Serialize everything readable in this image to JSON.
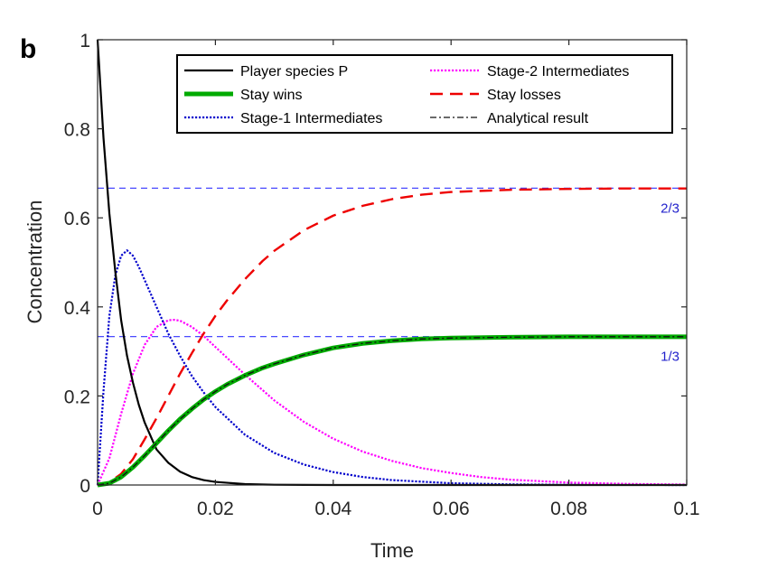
{
  "panel_label": "b",
  "chart_data": {
    "type": "line",
    "title": "",
    "xlabel": "Time",
    "ylabel": "Concentration",
    "xlim": [
      0,
      0.1
    ],
    "ylim": [
      0,
      1
    ],
    "xticks": [
      0,
      0.02,
      0.04,
      0.06,
      0.08,
      0.1
    ],
    "xtick_labels": [
      "0",
      "0.02",
      "0.04",
      "0.06",
      "0.08",
      "0.1"
    ],
    "yticks": [
      0,
      0.2,
      0.4,
      0.6,
      0.8,
      1
    ],
    "ytick_labels": [
      "0",
      "0.2",
      "0.4",
      "0.6",
      "0.8",
      "1"
    ],
    "grid": false,
    "legend_position": "top-right",
    "series": [
      {
        "name": "Player species P",
        "color": "#000000",
        "style": "solid",
        "x": [
          0,
          0.001,
          0.002,
          0.003,
          0.004,
          0.005,
          0.006,
          0.007,
          0.008,
          0.009,
          0.01,
          0.012,
          0.014,
          0.016,
          0.018,
          0.02,
          0.025,
          0.03,
          0.035,
          0.04,
          0.05,
          0.06,
          0.07,
          0.08,
          0.09,
          0.1
        ],
        "y": [
          1.0,
          0.78,
          0.61,
          0.48,
          0.37,
          0.29,
          0.23,
          0.18,
          0.14,
          0.11,
          0.08,
          0.05,
          0.03,
          0.018,
          0.011,
          0.007,
          0.002,
          0.0006,
          0.0002,
          0,
          0,
          0,
          0,
          0,
          0,
          0
        ]
      },
      {
        "name": "Stay wins",
        "color": "#00aa00",
        "style": "thick",
        "x": [
          0,
          0.002,
          0.004,
          0.006,
          0.008,
          0.01,
          0.012,
          0.014,
          0.016,
          0.018,
          0.02,
          0.022,
          0.025,
          0.028,
          0.03,
          0.035,
          0.04,
          0.045,
          0.05,
          0.055,
          0.06,
          0.07,
          0.08,
          0.09,
          0.1
        ],
        "y": [
          0,
          0.004,
          0.018,
          0.04,
          0.066,
          0.094,
          0.122,
          0.148,
          0.171,
          0.192,
          0.21,
          0.226,
          0.246,
          0.263,
          0.272,
          0.292,
          0.308,
          0.318,
          0.324,
          0.328,
          0.33,
          0.332,
          0.333,
          0.333,
          0.333
        ]
      },
      {
        "name": "Stage-1 Intermediates",
        "color": "#0000cc",
        "style": "dotted",
        "x": [
          0,
          0.001,
          0.002,
          0.003,
          0.004,
          0.005,
          0.006,
          0.007,
          0.008,
          0.009,
          0.01,
          0.012,
          0.014,
          0.016,
          0.018,
          0.02,
          0.025,
          0.03,
          0.035,
          0.04,
          0.045,
          0.05,
          0.06,
          0.07,
          0.08,
          0.09,
          0.1
        ],
        "y": [
          0,
          0.21,
          0.38,
          0.47,
          0.515,
          0.527,
          0.515,
          0.49,
          0.46,
          0.43,
          0.4,
          0.34,
          0.29,
          0.245,
          0.208,
          0.175,
          0.113,
          0.072,
          0.046,
          0.029,
          0.018,
          0.011,
          0.004,
          0.0015,
          0.0005,
          0.0002,
          0
        ]
      },
      {
        "name": "Stage-2 Intermediates",
        "color": "#ff00ff",
        "style": "dotted",
        "x": [
          0,
          0.002,
          0.004,
          0.006,
          0.008,
          0.01,
          0.012,
          0.013,
          0.014,
          0.016,
          0.018,
          0.02,
          0.025,
          0.03,
          0.035,
          0.04,
          0.045,
          0.05,
          0.055,
          0.06,
          0.065,
          0.07,
          0.08,
          0.09,
          0.1
        ],
        "y": [
          0,
          0.06,
          0.16,
          0.25,
          0.315,
          0.355,
          0.37,
          0.371,
          0.369,
          0.355,
          0.335,
          0.31,
          0.248,
          0.19,
          0.142,
          0.104,
          0.075,
          0.054,
          0.038,
          0.027,
          0.018,
          0.012,
          0.0055,
          0.0025,
          0.001
        ]
      },
      {
        "name": "Stay losses",
        "color": "#ee0000",
        "style": "dashed",
        "x": [
          0,
          0.002,
          0.004,
          0.006,
          0.008,
          0.01,
          0.012,
          0.014,
          0.016,
          0.018,
          0.02,
          0.022,
          0.025,
          0.028,
          0.03,
          0.035,
          0.04,
          0.045,
          0.05,
          0.055,
          0.06,
          0.07,
          0.08,
          0.09,
          0.1
        ],
        "y": [
          0,
          0.006,
          0.025,
          0.058,
          0.103,
          0.15,
          0.2,
          0.25,
          0.296,
          0.34,
          0.38,
          0.415,
          0.462,
          0.503,
          0.526,
          0.572,
          0.605,
          0.627,
          0.642,
          0.652,
          0.658,
          0.663,
          0.665,
          0.666,
          0.666
        ]
      },
      {
        "name": "Analytical result",
        "color": "#111111",
        "style": "dashdot",
        "x": [
          0,
          0.002,
          0.004,
          0.006,
          0.008,
          0.01,
          0.012,
          0.014,
          0.016,
          0.018,
          0.02,
          0.022,
          0.025,
          0.028,
          0.03,
          0.035,
          0.04,
          0.045,
          0.05,
          0.055,
          0.06,
          0.07,
          0.08,
          0.09,
          0.1
        ],
        "y": [
          0,
          0.004,
          0.018,
          0.04,
          0.066,
          0.094,
          0.122,
          0.148,
          0.171,
          0.192,
          0.21,
          0.226,
          0.246,
          0.263,
          0.272,
          0.292,
          0.308,
          0.318,
          0.324,
          0.328,
          0.33,
          0.332,
          0.333,
          0.333,
          0.333
        ]
      }
    ],
    "reference_lines": [
      {
        "y": 0.6667,
        "label": "2/3",
        "color": "#3333ff"
      },
      {
        "y": 0.3333,
        "label": "1/3",
        "color": "#3333ff"
      }
    ],
    "legend_order": [
      "Player species P",
      "Stay wins",
      "Stage-1 Intermediates",
      "Stage-2 Intermediates",
      "Stay losses",
      "Analytical result"
    ]
  }
}
